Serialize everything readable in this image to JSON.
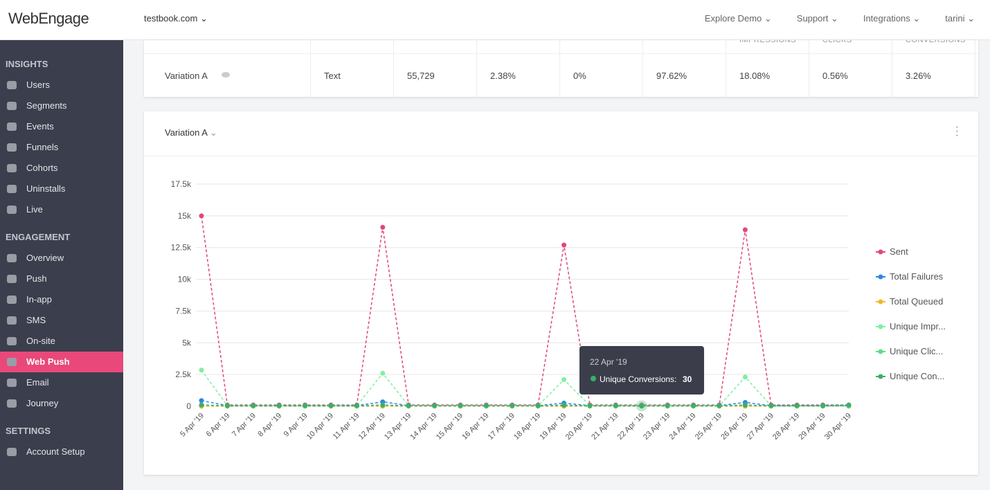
{
  "header": {
    "logo": "WebEngage",
    "account": "testbook.com",
    "nav": [
      "Explore Demo",
      "Support",
      "Integrations",
      "tarini"
    ]
  },
  "sidebar": {
    "active": "Web Push",
    "sections": [
      {
        "title": "INSIGHTS",
        "items": [
          "Users",
          "Segments",
          "Events",
          "Funnels",
          "Cohorts",
          "Uninstalls",
          "Live"
        ]
      },
      {
        "title": "ENGAGEMENT",
        "items": [
          "Overview",
          "Push",
          "In-app",
          "SMS",
          "On-site",
          "Web Push",
          "Email",
          "Journey"
        ]
      },
      {
        "title": "SETTINGS",
        "items": [
          "Account Setup"
        ]
      }
    ]
  },
  "table": {
    "header": [
      "IMPRESSIONS",
      "CLICKS",
      "CONVERSIONS"
    ],
    "row": [
      "Variation A",
      "Text",
      "55,729",
      "2.38%",
      "0%",
      "97.62%",
      "18.08%",
      "0.56%",
      "3.26%"
    ]
  },
  "panel": {
    "title": "Variation A"
  },
  "chart_data": {
    "type": "line",
    "categories": [
      "5 Apr '19",
      "6 Apr '19",
      "7 Apr '19",
      "8 Apr '19",
      "9 Apr '19",
      "10 Apr '19",
      "11 Apr '19",
      "12 Apr '19",
      "13 Apr '19",
      "14 Apr '19",
      "15 Apr '19",
      "16 Apr '19",
      "17 Apr '19",
      "18 Apr '19",
      "19 Apr '19",
      "20 Apr '19",
      "21 Apr '19",
      "22 Apr '19",
      "23 Apr '19",
      "24 Apr '19",
      "25 Apr '19",
      "26 Apr '19",
      "27 Apr '19",
      "28 Apr '19",
      "29 Apr '19",
      "30 Apr '19"
    ],
    "ylim": [
      0,
      17500
    ],
    "yticks": [
      0,
      {
        "value": 2500,
        "label": "2.5k"
      },
      {
        "value": 5000,
        "label": "5k"
      },
      {
        "value": 7500,
        "label": "7.5k"
      },
      {
        "value": 10000,
        "label": "10k"
      },
      {
        "value": 12500,
        "label": "12.5k"
      },
      {
        "value": 15000,
        "label": "15k"
      },
      {
        "value": 17500,
        "label": "17.5k"
      }
    ],
    "grid": true,
    "legend": "right",
    "series": [
      {
        "name": "Sent",
        "color": "#e2457c",
        "dashed": true,
        "values": [
          15000,
          100,
          100,
          100,
          100,
          100,
          100,
          14100,
          100,
          100,
          100,
          100,
          100,
          100,
          12700,
          100,
          100,
          100,
          100,
          100,
          100,
          13900,
          100,
          100,
          100,
          100
        ]
      },
      {
        "name": "Total Failures",
        "color": "#2f86e6",
        "dashed": true,
        "values": [
          450,
          50,
          50,
          50,
          50,
          50,
          50,
          350,
          50,
          50,
          50,
          50,
          50,
          50,
          250,
          50,
          50,
          50,
          50,
          50,
          50,
          300,
          50,
          50,
          50,
          50
        ]
      },
      {
        "name": "Total Queued",
        "color": "#f1b82d",
        "dashed": true,
        "values": [
          0,
          0,
          0,
          0,
          0,
          0,
          0,
          0,
          0,
          0,
          0,
          0,
          0,
          0,
          0,
          0,
          0,
          0,
          0,
          0,
          0,
          0,
          0,
          0,
          0,
          0
        ]
      },
      {
        "name": "Unique Impr...",
        "color": "#7ff0a0",
        "dashed": true,
        "values": [
          2850,
          50,
          50,
          50,
          50,
          50,
          50,
          2600,
          50,
          50,
          50,
          50,
          50,
          50,
          2100,
          50,
          50,
          50,
          50,
          50,
          50,
          2300,
          50,
          50,
          50,
          50
        ]
      },
      {
        "name": "Unique Clic...",
        "color": "#5fdc88",
        "dashed": true,
        "values": [
          100,
          20,
          20,
          20,
          20,
          20,
          20,
          100,
          20,
          20,
          20,
          20,
          20,
          20,
          100,
          20,
          20,
          20,
          20,
          20,
          20,
          100,
          20,
          20,
          20,
          20
        ]
      },
      {
        "name": "Unique Con...",
        "color": "#3cae6a",
        "dashed": true,
        "values": [
          100,
          50,
          50,
          50,
          50,
          50,
          50,
          90,
          50,
          50,
          50,
          50,
          50,
          50,
          80,
          50,
          50,
          30,
          50,
          50,
          50,
          90,
          50,
          50,
          50,
          100
        ]
      }
    ]
  },
  "tooltip": {
    "title": "22 Apr '19",
    "label": "Unique Conversions:",
    "value": 30
  }
}
